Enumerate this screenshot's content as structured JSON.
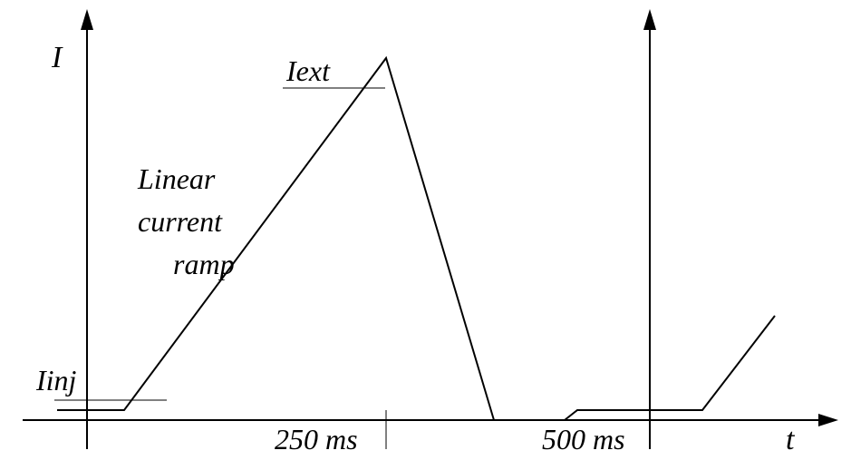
{
  "labels": {
    "y_axis": "I",
    "x_axis": "t",
    "iext": "Iext",
    "iinj": "Iinj",
    "ramp_line1": "Linear",
    "ramp_line2": "current",
    "ramp_line3": "ramp",
    "tick_250": "250 ms",
    "tick_500": "500 ms"
  }
}
